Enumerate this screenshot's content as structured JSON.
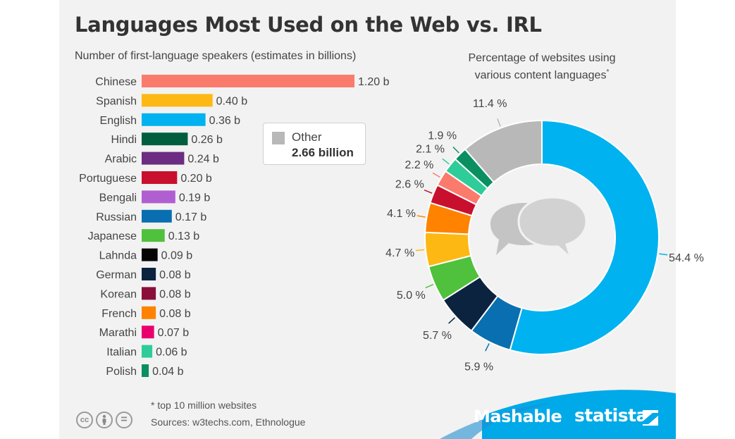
{
  "title": "Languages Most Used on the Web vs. IRL",
  "bar_subtitle": "Number of first-language speakers (estimates in billions)",
  "donut_subtitle_line1": "Percentage of websites using",
  "donut_subtitle_line2": "various content languages",
  "donut_subtitle_marker": "*",
  "other_box": {
    "label": "Other",
    "value": "2.66 billion",
    "color": "#b8b8b8"
  },
  "footnote": "* top 10 million websites",
  "sources": "Sources: w3techs.com, Ethnologue",
  "license_icons": [
    "cc-icon",
    "attribution-icon",
    "no-derivatives-icon"
  ],
  "license_glyphs": [
    "cc",
    "",
    "="
  ],
  "brands": {
    "mashable": "Mashable",
    "statista": "statista"
  },
  "colors": {
    "accent_blue": "#00a9e8",
    "dark_blue": "#0a6fb0"
  },
  "chart_data": [
    {
      "type": "bar",
      "orientation": "horizontal",
      "unit": "b",
      "categories": [
        "Chinese",
        "Spanish",
        "English",
        "Hindi",
        "Arabic",
        "Portuguese",
        "Bengali",
        "Russian",
        "Japanese",
        "Lahnda",
        "German",
        "Korean",
        "French",
        "Marathi",
        "Italian",
        "Polish"
      ],
      "values": [
        1.2,
        0.4,
        0.36,
        0.26,
        0.24,
        0.2,
        0.19,
        0.17,
        0.13,
        0.09,
        0.08,
        0.08,
        0.08,
        0.07,
        0.06,
        0.04
      ],
      "value_labels": [
        "1.20 b",
        "0.40 b",
        "0.36 b",
        "0.26 b",
        "0.24 b",
        "0.20 b",
        "0.19 b",
        "0.17 b",
        "0.13 b",
        "0.09 b",
        "0.08 b",
        "0.08 b",
        "0.08 b",
        "0.07 b",
        "0.06 b",
        "0.04 b"
      ],
      "colors": [
        "#fa7b6c",
        "#fdb813",
        "#00b2ef",
        "#005e3f",
        "#6b2c82",
        "#c8102e",
        "#b05fd1",
        "#0a6fb0",
        "#4fc13c",
        "#050505",
        "#0c2340",
        "#8b0e3a",
        "#ff8200",
        "#e9006f",
        "#2ecc98",
        "#0a8f60"
      ],
      "xlim": [
        0,
        1.2
      ]
    },
    {
      "type": "pie",
      "style": "donut",
      "values": [
        54.4,
        5.9,
        5.7,
        5.0,
        4.7,
        4.1,
        2.6,
        2.2,
        2.1,
        1.9,
        11.4
      ],
      "labels": [
        "54.4 %",
        "5.9 %",
        "5.7 %",
        "5.0 %",
        "4.7 %",
        "4.1 %",
        "2.6 %",
        "2.2 %",
        "2.1 %",
        "1.9 %",
        "11.4 %"
      ],
      "colors": [
        "#00b2ef",
        "#0a6fb0",
        "#0c2340",
        "#4fc13c",
        "#fdb813",
        "#ff8200",
        "#c8102e",
        "#fa7b6c",
        "#2ecc98",
        "#0a8f60",
        "#b8b8b8"
      ],
      "center_icon": "chat-bubbles-icon"
    }
  ]
}
